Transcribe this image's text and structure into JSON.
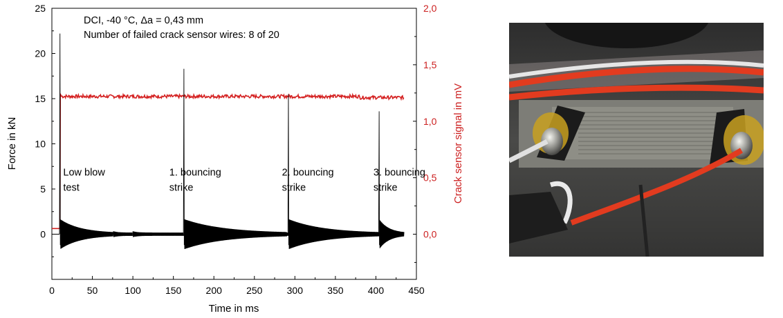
{
  "chart_data": {
    "type": "line",
    "title": "",
    "info_lines": [
      "DCI, -40 °C, Δa = 0,43 mm",
      "Number of failed crack sensor wires: 8 of 20"
    ],
    "xlabel": "Time in ms",
    "ylabel_left": "Force in kN",
    "ylabel_right": "Crack sensor signal in mV",
    "xlim": [
      0,
      450
    ],
    "ylim_left": [
      -5,
      25
    ],
    "ylim_right": [
      -0.4,
      2.0
    ],
    "x_ticks": [
      "0",
      "50",
      "100",
      "150",
      "200",
      "250",
      "300",
      "350",
      "400",
      "450"
    ],
    "y_left_ticks": [
      "0",
      "5",
      "10",
      "15",
      "20",
      "25"
    ],
    "y_right_ticks": [
      "0,0",
      "0,5",
      "1,0",
      "1,5",
      "2,0"
    ],
    "grid": false,
    "series": [
      {
        "axis": "left",
        "color": "#000000",
        "events": [
          {
            "x": 10,
            "peak": 22.2,
            "decay_to": 76
          },
          {
            "x": 163,
            "peak": 18.3,
            "decay_to": 290
          },
          {
            "x": 292,
            "peak": 15.5,
            "decay_to": 404
          },
          {
            "x": 404,
            "peak": 13.6,
            "decay_to": 435
          }
        ],
        "baseline": 0,
        "x_end": 435
      },
      {
        "axis": "right",
        "color": "#d42020",
        "pre_value": 0.05,
        "pre_x": [
          0,
          10
        ],
        "value": 1.22,
        "x_range": [
          12,
          435
        ]
      }
    ],
    "annotations": [
      {
        "lines": [
          "Low blow",
          "test"
        ],
        "x": 14,
        "y": 6.5
      },
      {
        "lines": [
          "1. bouncing",
          "strike"
        ],
        "x": 145,
        "y": 6.5
      },
      {
        "lines": [
          "2. bouncing",
          "strike"
        ],
        "x": 284,
        "y": 6.5
      },
      {
        "lines": [
          "3. bouncing",
          "strike"
        ],
        "x": 397,
        "y": 6.5
      }
    ]
  },
  "photo": {
    "icon": "crack-sensor-photo-icon",
    "wire_color": "#e23b1f",
    "foil_color": "#8e8e86"
  }
}
